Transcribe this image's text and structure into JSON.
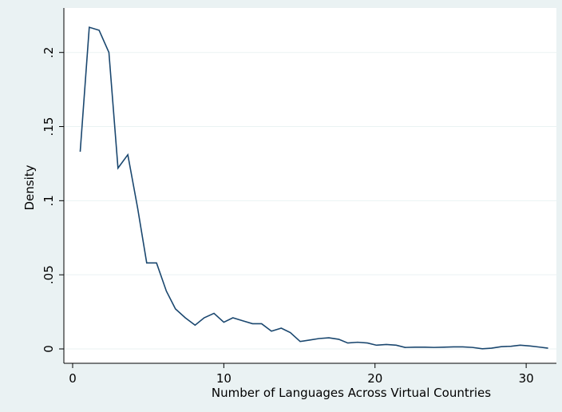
{
  "chart_data": {
    "type": "line",
    "xlabel": "Number of Languages Across Virtual Countries",
    "ylabel": "Density",
    "color": "#1a476f",
    "x": [
      0.5,
      1.1,
      1.75,
      2.4,
      3.0,
      3.65,
      4.3,
      4.9,
      5.55,
      6.2,
      6.8,
      7.45,
      8.1,
      8.7,
      9.35,
      10.0,
      10.6,
      11.25,
      11.9,
      12.5,
      13.15,
      13.8,
      14.4,
      15.05,
      15.7,
      16.3,
      16.95,
      17.6,
      18.2,
      18.85,
      19.5,
      20.1,
      20.75,
      21.4,
      22.0,
      22.65,
      23.3,
      23.9,
      24.55,
      25.2,
      25.8,
      26.45,
      27.1,
      27.7,
      28.35,
      29.0,
      29.6,
      30.25,
      30.9,
      31.45
    ],
    "values": [
      0.133,
      0.217,
      0.215,
      0.2,
      0.122,
      0.131,
      0.095,
      0.058,
      0.058,
      0.039,
      0.027,
      0.021,
      0.016,
      0.021,
      0.024,
      0.018,
      0.021,
      0.019,
      0.017,
      0.017,
      0.012,
      0.014,
      0.011,
      0.005,
      0.006,
      0.007,
      0.0075,
      0.0065,
      0.004,
      0.0045,
      0.004,
      0.0025,
      0.003,
      0.0025,
      0.001,
      0.0012,
      0.0012,
      0.001,
      0.0012,
      0.0014,
      0.0014,
      0.001,
      0.0001,
      0.0005,
      0.0015,
      0.0018,
      0.0025,
      0.002,
      0.0012,
      0.0005
    ],
    "xlim": [
      -0.58,
      32.0
    ],
    "ylim": [
      -0.0097,
      0.23
    ],
    "xticks": [
      0,
      10,
      20,
      30
    ],
    "yticks": [
      0,
      {
        "value": 0.05,
        "label": ".05"
      },
      {
        "value": 0.1,
        "label": ".1"
      },
      {
        "value": 0.15,
        "label": ".15"
      },
      {
        "value": 0.2,
        "label": ".2"
      }
    ],
    "grid": true
  }
}
